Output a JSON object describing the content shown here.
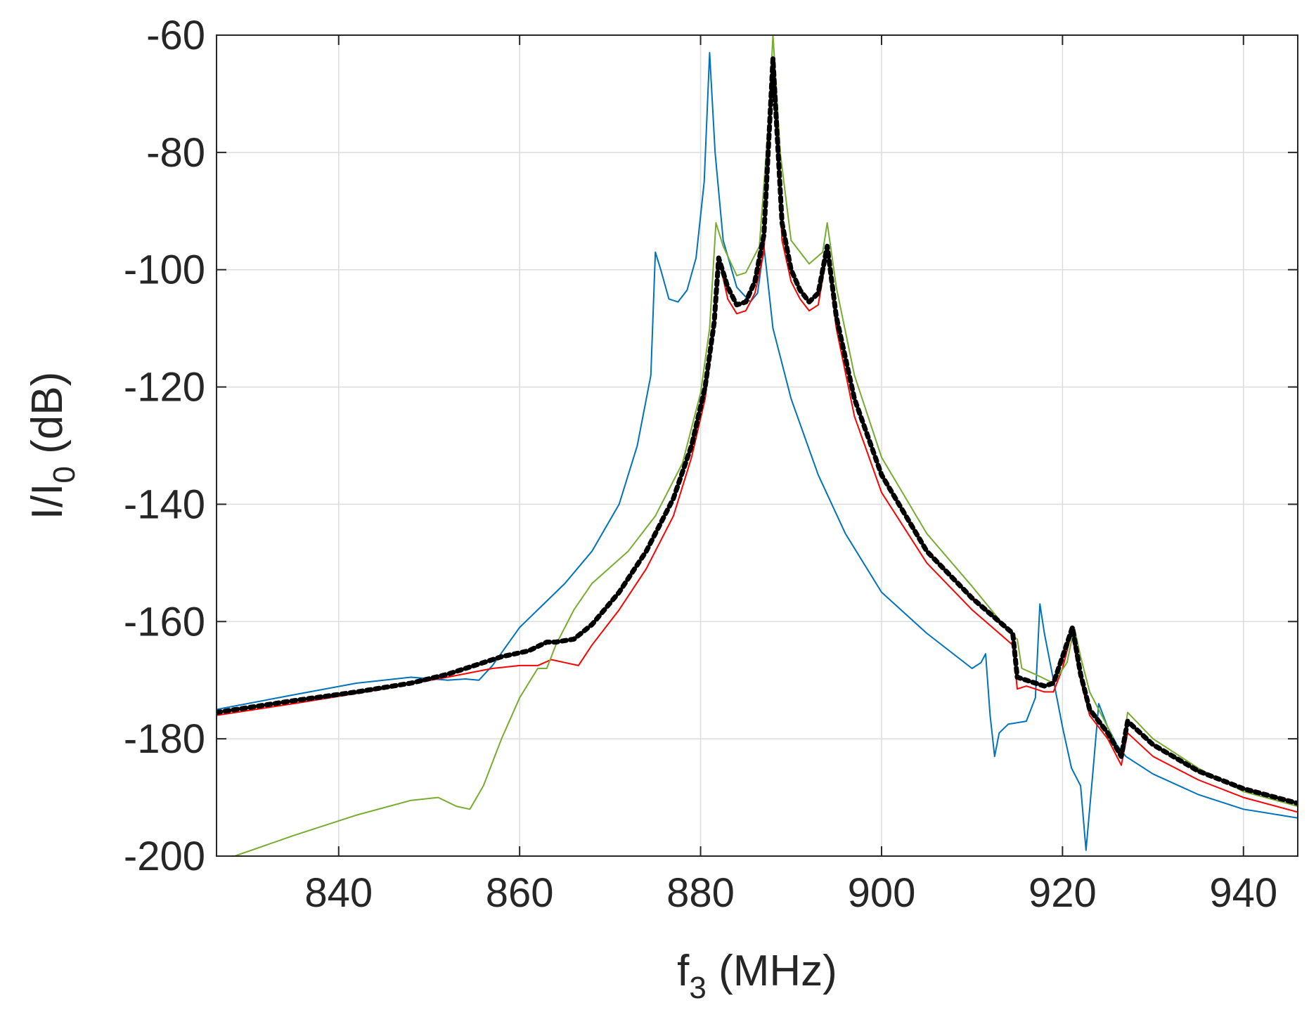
{
  "chart_data": {
    "type": "line",
    "title": "",
    "xlabel": {
      "main": "f",
      "sub": "3",
      "rest": " (MHz)"
    },
    "ylabel": {
      "main": "I/I",
      "sub": "0",
      "rest": " (dB)"
    },
    "xlim": [
      826.5,
      946
    ],
    "ylim": [
      -200,
      -60
    ],
    "xticks": [
      840,
      860,
      880,
      900,
      920,
      940
    ],
    "yticks": [
      -60,
      -80,
      -100,
      -120,
      -140,
      -160,
      -180,
      -200
    ],
    "grid": true,
    "legend": "none",
    "series": [
      {
        "color": "#0072BD",
        "style": "solid",
        "points": [
          [
            826.5,
            -175
          ],
          [
            835,
            -172.5
          ],
          [
            842,
            -170.5
          ],
          [
            848,
            -169.5
          ],
          [
            852,
            -170
          ],
          [
            854,
            -169.8
          ],
          [
            855.5,
            -170
          ],
          [
            857,
            -167.5
          ],
          [
            860,
            -161
          ],
          [
            865,
            -153.5
          ],
          [
            868,
            -148
          ],
          [
            871,
            -140
          ],
          [
            873,
            -130
          ],
          [
            874.5,
            -118
          ],
          [
            875,
            -97
          ],
          [
            875.6,
            -100
          ],
          [
            876.5,
            -105
          ],
          [
            877.5,
            -105.5
          ],
          [
            878.5,
            -103.5
          ],
          [
            879.5,
            -98
          ],
          [
            880.4,
            -85
          ],
          [
            881,
            -63
          ],
          [
            881.6,
            -80
          ],
          [
            882.5,
            -95
          ],
          [
            884,
            -103
          ],
          [
            885.5,
            -105.5
          ],
          [
            886.3,
            -104
          ],
          [
            887,
            -96
          ],
          [
            888,
            -110
          ],
          [
            890,
            -122
          ],
          [
            893,
            -135
          ],
          [
            896,
            -145
          ],
          [
            900,
            -155
          ],
          [
            905,
            -162
          ],
          [
            910,
            -168
          ],
          [
            911,
            -167
          ],
          [
            911.5,
            -165.5
          ],
          [
            912,
            -176
          ],
          [
            912.5,
            -183
          ],
          [
            913,
            -179
          ],
          [
            914,
            -177.5
          ],
          [
            916,
            -177
          ],
          [
            917,
            -173
          ],
          [
            917.5,
            -157
          ],
          [
            918,
            -162
          ],
          [
            919,
            -170
          ],
          [
            920,
            -178
          ],
          [
            921,
            -185
          ],
          [
            922,
            -188
          ],
          [
            922.6,
            -199
          ],
          [
            923.4,
            -185
          ],
          [
            924,
            -174
          ],
          [
            925,
            -178
          ],
          [
            926,
            -181
          ],
          [
            927,
            -183
          ],
          [
            930,
            -186
          ],
          [
            935,
            -189.5
          ],
          [
            940,
            -192
          ],
          [
            946,
            -193.5
          ]
        ]
      },
      {
        "color": "#FF0000",
        "style": "solid",
        "points": [
          [
            826.5,
            -176
          ],
          [
            835,
            -174
          ],
          [
            845,
            -171.5
          ],
          [
            852,
            -169.5
          ],
          [
            857,
            -168
          ],
          [
            860,
            -167.5
          ],
          [
            862,
            -167.5
          ],
          [
            863.5,
            -166.5
          ],
          [
            865,
            -167
          ],
          [
            866.5,
            -167.5
          ],
          [
            868,
            -164
          ],
          [
            871,
            -158
          ],
          [
            874,
            -151
          ],
          [
            877,
            -142
          ],
          [
            879,
            -132
          ],
          [
            880.5,
            -122
          ],
          [
            881.5,
            -110
          ],
          [
            882,
            -98
          ],
          [
            883,
            -105
          ],
          [
            884,
            -107.5
          ],
          [
            885,
            -107
          ],
          [
            886,
            -104
          ],
          [
            887,
            -97
          ],
          [
            888,
            -65
          ],
          [
            889,
            -95
          ],
          [
            890,
            -102
          ],
          [
            891,
            -105
          ],
          [
            892,
            -107
          ],
          [
            893,
            -106
          ],
          [
            894,
            -97
          ],
          [
            895,
            -110
          ],
          [
            897,
            -125
          ],
          [
            900,
            -138
          ],
          [
            905,
            -150
          ],
          [
            910,
            -158
          ],
          [
            913,
            -162
          ],
          [
            914.5,
            -164
          ],
          [
            915,
            -171.5
          ],
          [
            916,
            -171
          ],
          [
            918,
            -172
          ],
          [
            919,
            -172
          ],
          [
            920,
            -168
          ],
          [
            921,
            -162
          ],
          [
            922,
            -170
          ],
          [
            923,
            -176
          ],
          [
            925,
            -180
          ],
          [
            926.5,
            -184.5
          ],
          [
            927.2,
            -179
          ],
          [
            930,
            -183
          ],
          [
            935,
            -187
          ],
          [
            940,
            -190
          ],
          [
            946,
            -192.5
          ]
        ]
      },
      {
        "color": "#77AC30",
        "style": "solid",
        "points": [
          [
            828.5,
            -200
          ],
          [
            835,
            -196.5
          ],
          [
            842,
            -193
          ],
          [
            848,
            -190.5
          ],
          [
            851,
            -190
          ],
          [
            853,
            -191.5
          ],
          [
            854.5,
            -192
          ],
          [
            856,
            -188
          ],
          [
            858,
            -180
          ],
          [
            860,
            -173
          ],
          [
            861,
            -170.5
          ],
          [
            862,
            -168
          ],
          [
            863,
            -168
          ],
          [
            864,
            -164
          ],
          [
            866,
            -158
          ],
          [
            868,
            -153.5
          ],
          [
            872,
            -148
          ],
          [
            875,
            -142
          ],
          [
            878,
            -133
          ],
          [
            880,
            -121
          ],
          [
            881,
            -110
          ],
          [
            881.7,
            -92
          ],
          [
            882.5,
            -96
          ],
          [
            884,
            -101
          ],
          [
            885,
            -100.5
          ],
          [
            886.5,
            -96
          ],
          [
            887.5,
            -75
          ],
          [
            888,
            -60
          ],
          [
            888.8,
            -80
          ],
          [
            890,
            -95
          ],
          [
            892,
            -99
          ],
          [
            893.5,
            -97
          ],
          [
            894,
            -92
          ],
          [
            895,
            -103
          ],
          [
            897,
            -118
          ],
          [
            900,
            -132
          ],
          [
            905,
            -145
          ],
          [
            910,
            -154
          ],
          [
            914.5,
            -162.5
          ],
          [
            915,
            -163
          ],
          [
            915.5,
            -168
          ],
          [
            917,
            -169
          ],
          [
            919,
            -170.5
          ],
          [
            920.5,
            -167
          ],
          [
            921.3,
            -161
          ],
          [
            922,
            -166
          ],
          [
            923,
            -172
          ],
          [
            925,
            -178
          ],
          [
            926.5,
            -183
          ],
          [
            927.2,
            -175.5
          ],
          [
            930,
            -180
          ],
          [
            935,
            -185
          ],
          [
            940,
            -189
          ],
          [
            946,
            -191.5
          ]
        ]
      },
      {
        "color": "#000000",
        "style": "dotted",
        "points": [
          [
            826.5,
            -175.5
          ],
          [
            835,
            -173.5
          ],
          [
            842,
            -172
          ],
          [
            848,
            -170.5
          ],
          [
            852,
            -169
          ],
          [
            855,
            -167.5
          ],
          [
            858,
            -166
          ],
          [
            861,
            -165
          ],
          [
            863,
            -163.5
          ],
          [
            864,
            -163.5
          ],
          [
            866,
            -163
          ],
          [
            868,
            -160.5
          ],
          [
            871,
            -155
          ],
          [
            874,
            -148
          ],
          [
            877,
            -139
          ],
          [
            879,
            -130
          ],
          [
            880.5,
            -120
          ],
          [
            881.5,
            -109
          ],
          [
            882,
            -98
          ],
          [
            883,
            -103
          ],
          [
            884,
            -106
          ],
          [
            885,
            -105.5
          ],
          [
            886,
            -102
          ],
          [
            887,
            -94
          ],
          [
            888,
            -64
          ],
          [
            889,
            -92
          ],
          [
            890,
            -100
          ],
          [
            891,
            -103.5
          ],
          [
            892,
            -105.5
          ],
          [
            893,
            -104
          ],
          [
            894,
            -96
          ],
          [
            895,
            -108
          ],
          [
            897,
            -122
          ],
          [
            900,
            -135
          ],
          [
            905,
            -148
          ],
          [
            910,
            -156
          ],
          [
            913,
            -160
          ],
          [
            914.5,
            -162
          ],
          [
            915,
            -169.5
          ],
          [
            916,
            -170
          ],
          [
            918,
            -171
          ],
          [
            919,
            -170.5
          ],
          [
            920,
            -166
          ],
          [
            921.1,
            -161
          ],
          [
            922,
            -169
          ],
          [
            923,
            -175
          ],
          [
            925,
            -179
          ],
          [
            926.5,
            -183
          ],
          [
            927.2,
            -177
          ],
          [
            930,
            -181
          ],
          [
            935,
            -185.5
          ],
          [
            940,
            -188.5
          ],
          [
            946,
            -191
          ]
        ]
      }
    ]
  }
}
